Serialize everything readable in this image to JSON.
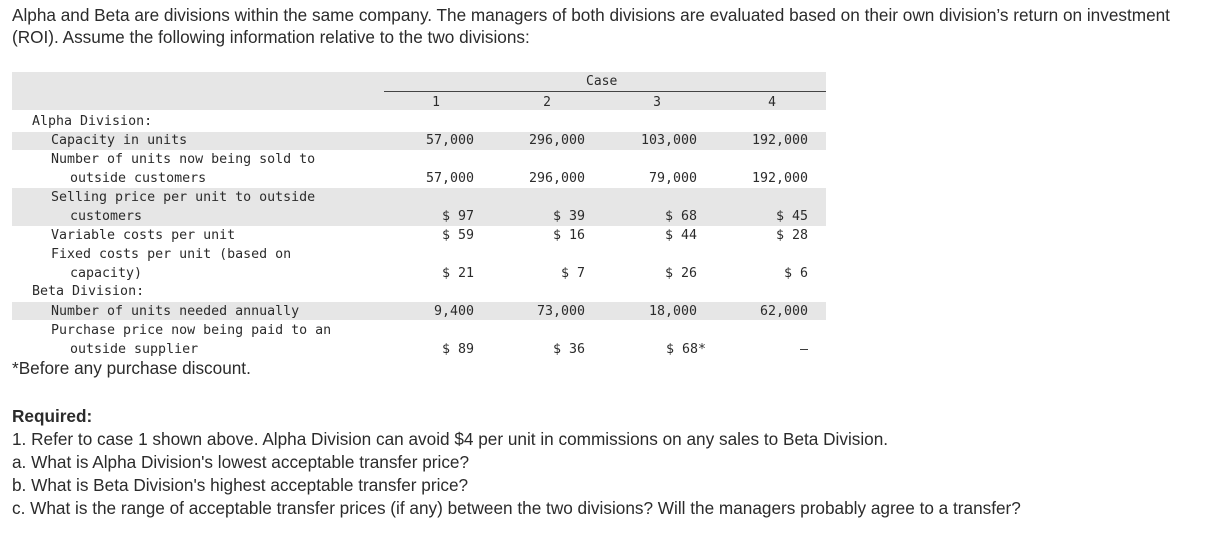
{
  "intro": "Alpha and Beta are divisions within the same company. The managers of both divisions are evaluated based on their own division’s return on investment (ROI). Assume the following information relative to the two divisions:",
  "table": {
    "case_header": "Case",
    "cases": [
      "1",
      "2",
      "3",
      "4"
    ],
    "alpha_heading": "Alpha Division:",
    "beta_heading": "Beta Division:",
    "rows": [
      {
        "label": [
          "Capacity in units"
        ],
        "values": [
          "57,000",
          "296,000",
          "103,000",
          "192,000"
        ]
      },
      {
        "label": [
          "Number of units now being sold to",
          "outside customers"
        ],
        "values": [
          "57,000",
          "296,000",
          "79,000",
          "192,000"
        ]
      },
      {
        "label": [
          "Selling price per unit to outside",
          "customers"
        ],
        "values": [
          "$ 97",
          "$ 39",
          "$ 68",
          "$ 45"
        ]
      },
      {
        "label": [
          "Variable costs per unit"
        ],
        "values": [
          "$ 59",
          "$ 16",
          "$ 44",
          "$ 28"
        ]
      },
      {
        "label": [
          "Fixed costs per unit (based on",
          "capacity)"
        ],
        "values": [
          "$ 21",
          "$ 7",
          "$ 26",
          "$ 6"
        ]
      },
      {
        "label": [
          "Number of units needed annually"
        ],
        "values": [
          "9,400",
          "73,000",
          "18,000",
          "62,000"
        ]
      },
      {
        "label": [
          "Purchase price now being paid to an",
          "outside supplier"
        ],
        "values": [
          "$ 89",
          "$ 36",
          "$ 68*",
          "–"
        ]
      }
    ]
  },
  "footnote": "*Before any purchase discount.",
  "required": {
    "title": "Required:",
    "lines": [
      "1. Refer to case 1 shown above. Alpha Division can avoid $4 per unit in commissions on any sales to Beta Division.",
      "a. What is Alpha Division's lowest acceptable transfer price?",
      "b. What is Beta Division's highest acceptable transfer price?",
      "c. What is the range of acceptable transfer prices (if any) between the two divisions? Will the managers probably agree to a transfer?"
    ]
  }
}
